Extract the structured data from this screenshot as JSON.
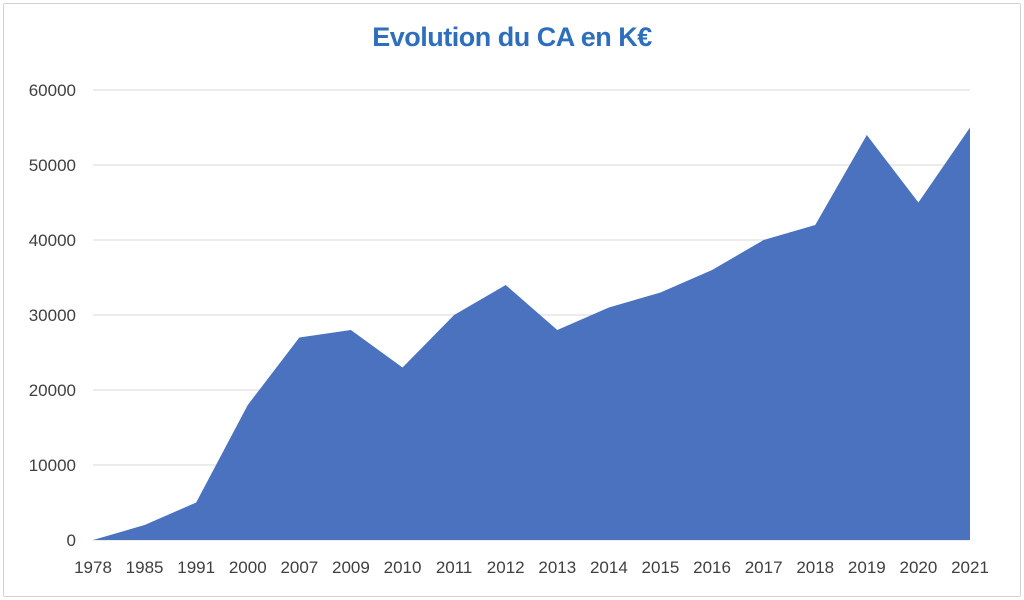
{
  "chart_data": {
    "type": "area",
    "title": "Evolution du CA en K€",
    "title_color": "#2e6fbd",
    "fill_color": "#4a72bf",
    "grid": true,
    "grid_color": "#d9d9d9",
    "xlabel": "",
    "ylabel": "",
    "ylim": [
      0,
      60000
    ],
    "yticks": [
      "0",
      "10000",
      "20000",
      "30000",
      "40000",
      "50000",
      "60000"
    ],
    "categories": [
      "1978",
      "1985",
      "1991",
      "2000",
      "2007",
      "2009",
      "2010",
      "2011",
      "2012",
      "2013",
      "2014",
      "2015",
      "2016",
      "2017",
      "2018",
      "2019",
      "2020",
      "2021"
    ],
    "series": [
      {
        "values": [
          0,
          2000,
          5000,
          18000,
          27000,
          28000,
          23000,
          30000,
          34000,
          28000,
          31000,
          33000,
          36000,
          40000,
          42000,
          54000,
          45000,
          55000
        ]
      }
    ]
  }
}
